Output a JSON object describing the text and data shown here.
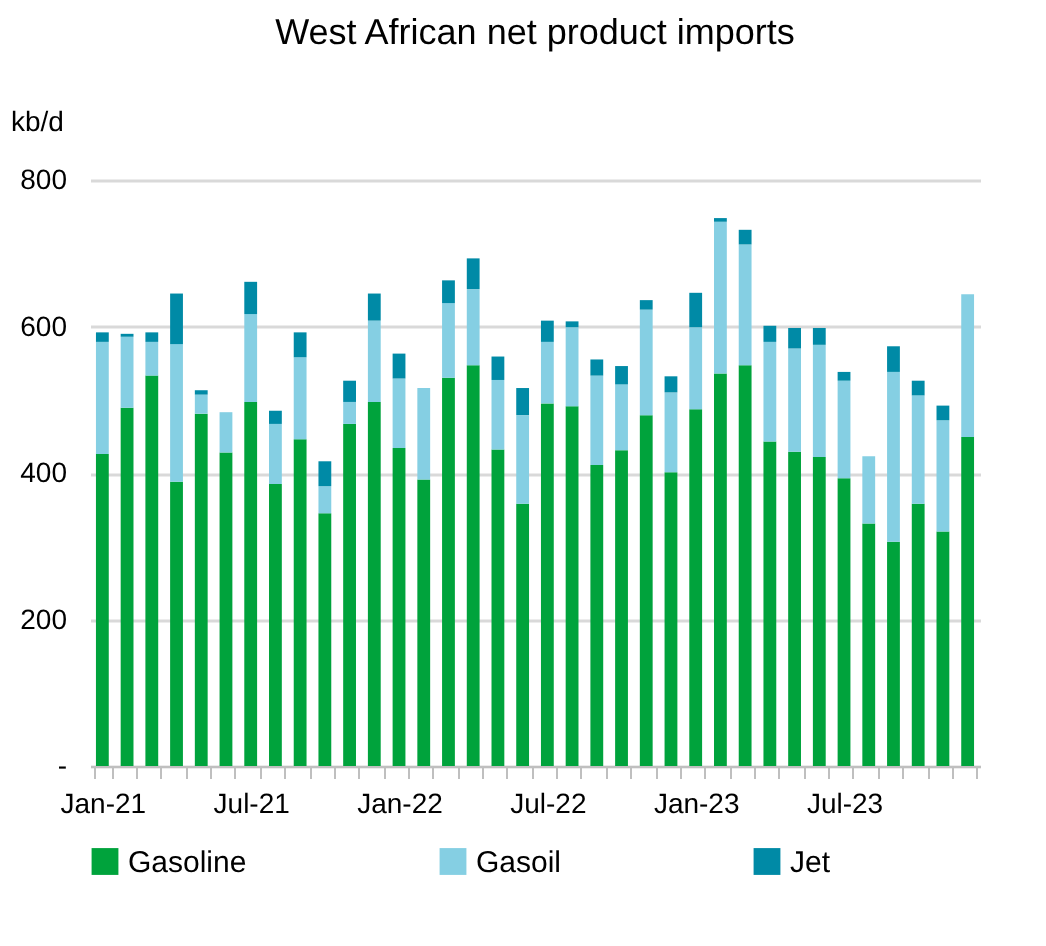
{
  "chart_data": {
    "type": "bar",
    "title": "West African net product imports",
    "ylabel": "kb/d",
    "stacked": true,
    "categories": [
      "Jan-21",
      null,
      null,
      null,
      null,
      null,
      "Jul-21",
      null,
      null,
      null,
      null,
      null,
      "Jan-22",
      null,
      null,
      null,
      null,
      null,
      "Jul-22",
      null,
      null,
      null,
      null,
      null,
      "Jan-23",
      null,
      null,
      null,
      null,
      null,
      "Jul-23",
      null,
      null,
      null,
      null,
      null
    ],
    "series": [
      {
        "name": "Gasoline",
        "color": "#00a33c",
        "values": [
          426,
          489,
          533,
          388,
          481,
          428,
          497,
          385,
          446,
          345,
          467,
          497,
          434,
          391,
          530,
          547,
          432,
          358,
          495,
          491,
          411,
          431,
          479,
          401,
          487,
          536,
          547,
          443,
          429,
          422,
          393,
          331,
          306,
          358,
          320,
          449
        ]
      },
      {
        "name": "Gasoil",
        "color": "#85cfe3",
        "values": [
          153,
          97,
          46,
          188,
          26,
          55,
          120,
          82,
          112,
          37,
          30,
          111,
          95,
          125,
          102,
          104,
          95,
          121,
          84,
          108,
          122,
          90,
          144,
          109,
          112,
          207,
          165,
          136,
          141,
          153,
          133,
          92,
          232,
          148,
          152,
          195
        ]
      },
      {
        "name": "Jet",
        "color": "#008aa6",
        "values": [
          13,
          4,
          13,
          69,
          6,
          0,
          44,
          18,
          34,
          34,
          29,
          37,
          34,
          0,
          31,
          42,
          32,
          37,
          29,
          8,
          22,
          25,
          13,
          22,
          47,
          5,
          20,
          22,
          28,
          23,
          12,
          0,
          35,
          20,
          20,
          0
        ]
      }
    ],
    "ylim": [
      0,
      800
    ],
    "yticks": [
      {
        "value": 0,
        "label": "-"
      },
      200,
      400,
      600,
      800
    ],
    "grid": "y",
    "legend": "bottom"
  }
}
